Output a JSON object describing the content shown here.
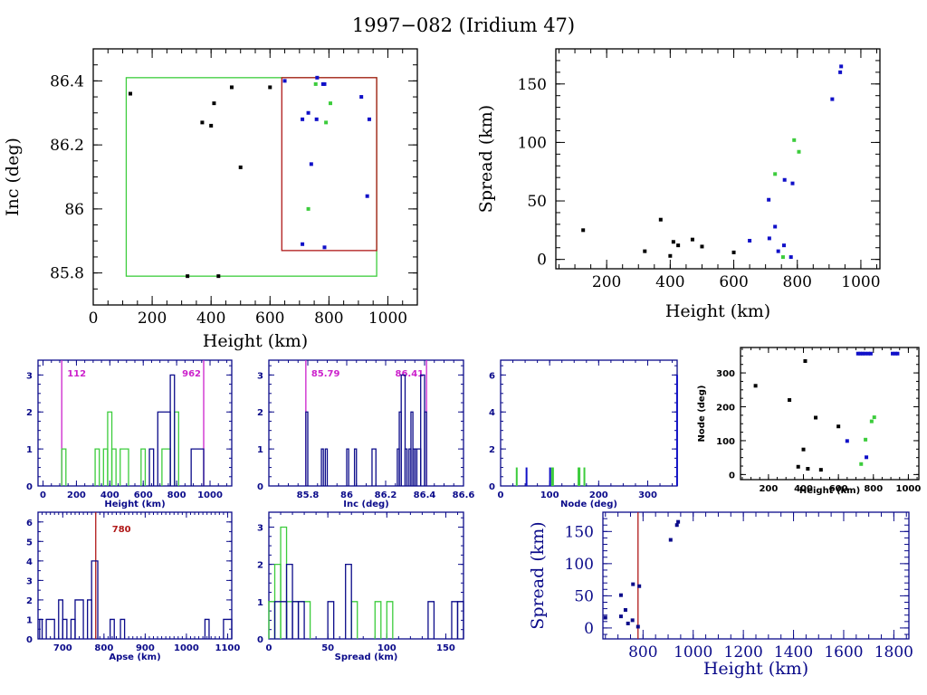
{
  "title": "1997−082 (Iridium 47)",
  "colors": {
    "black": "#000000",
    "navy": "#0b0b8a",
    "blue": "#1010c8",
    "green": "#3ccc3c",
    "red": "#b01818",
    "magenta": "#cc22cc"
  },
  "chart_data": [
    {
      "id": "inc-vs-height",
      "type": "scatter",
      "xlabel": "Height (km)",
      "ylabel": "Inc (deg)",
      "xlim": [
        0,
        1100
      ],
      "ylim": [
        85.7,
        86.5
      ],
      "xticks": [
        0,
        200,
        400,
        600,
        800,
        1000
      ],
      "yticks": [
        85.8,
        86,
        86.2,
        86.4
      ],
      "ytick_labels": [
        "85.8",
        "86",
        "86.2",
        "86.4"
      ],
      "boxes": [
        {
          "name": "green-box",
          "color": "green",
          "x": [
            112,
            962
          ],
          "y": [
            85.79,
            86.41
          ]
        },
        {
          "name": "red-box",
          "color": "red",
          "x": [
            640,
            962
          ],
          "y": [
            85.87,
            86.41
          ]
        }
      ],
      "series": [
        {
          "name": "black",
          "color": "black",
          "points": [
            [
              126,
              86.36
            ],
            [
              320,
              85.79
            ],
            [
              370,
              86.27
            ],
            [
              400,
              86.26
            ],
            [
              410,
              86.33
            ],
            [
              425,
              85.79
            ],
            [
              470,
              86.38
            ],
            [
              500,
              86.13
            ],
            [
              600,
              86.38
            ]
          ]
        },
        {
          "name": "blue",
          "color": "blue",
          "points": [
            [
              650,
              86.4
            ],
            [
              710,
              86.28
            ],
            [
              730,
              86.3
            ],
            [
              760,
              86.41
            ],
            [
              758,
              86.28
            ],
            [
              780,
              86.39
            ],
            [
              785,
              86.39
            ],
            [
              740,
              86.14
            ],
            [
              910,
              86.35
            ],
            [
              937,
              86.28
            ],
            [
              930,
              86.04
            ],
            [
              710,
              85.89
            ],
            [
              785,
              85.88
            ]
          ]
        },
        {
          "name": "green",
          "color": "green",
          "points": [
            [
              755,
              86.39
            ],
            [
              805,
              86.33
            ],
            [
              790,
              86.27
            ],
            [
              730,
              86.0
            ]
          ]
        }
      ]
    },
    {
      "id": "spread-vs-height",
      "type": "scatter",
      "xlabel": "Height (km)",
      "ylabel": "Spread (km)",
      "xlim": [
        40,
        1060
      ],
      "ylim": [
        -8,
        180
      ],
      "xticks": [
        200,
        400,
        600,
        800,
        1000
      ],
      "yticks": [
        0,
        50,
        100,
        150
      ],
      "series": [
        {
          "name": "black",
          "color": "black",
          "points": [
            [
              126,
              25
            ],
            [
              320,
              7
            ],
            [
              370,
              34
            ],
            [
              400,
              3
            ],
            [
              410,
              15
            ],
            [
              425,
              12
            ],
            [
              470,
              17
            ],
            [
              500,
              11
            ],
            [
              600,
              6
            ]
          ]
        },
        {
          "name": "blue",
          "color": "blue",
          "points": [
            [
              650,
              16
            ],
            [
              710,
              51
            ],
            [
              712,
              18
            ],
            [
              730,
              28
            ],
            [
              740,
              7
            ],
            [
              758,
              12
            ],
            [
              760,
              68
            ],
            [
              780,
              2
            ],
            [
              785,
              65
            ],
            [
              910,
              137
            ],
            [
              935,
              160
            ],
            [
              938,
              165
            ]
          ]
        },
        {
          "name": "green",
          "color": "green",
          "points": [
            [
              730,
              73
            ],
            [
              755,
              2
            ],
            [
              790,
              102
            ],
            [
              805,
              92
            ]
          ]
        }
      ]
    },
    {
      "id": "height-histogram",
      "type": "bar",
      "xlabel": "Height (km)",
      "ylabel": "",
      "xlim": [
        -30,
        1130
      ],
      "ylim": [
        0,
        3.4
      ],
      "xticks": [
        0,
        200,
        400,
        600,
        800,
        1000
      ],
      "yticks": [
        0,
        1,
        2,
        3
      ],
      "markers": [
        {
          "value": 112,
          "label": "112",
          "color": "magenta",
          "label_side": "right"
        },
        {
          "value": 962,
          "label": "962",
          "color": "magenta",
          "label_side": "left"
        }
      ],
      "series": [
        {
          "name": "green",
          "color": "green",
          "bins": [
            [
              112,
              137,
              1
            ],
            [
              312,
              337,
              1
            ],
            [
              362,
              387,
              1
            ],
            [
              387,
              412,
              2
            ],
            [
              412,
              437,
              1
            ],
            [
              462,
              512,
              1
            ],
            [
              587,
              612,
              1
            ],
            [
              712,
              762,
              1
            ],
            [
              787,
              812,
              2
            ]
          ]
        },
        {
          "name": "blue",
          "color": "navy",
          "bins": [
            [
              637,
              662,
              1
            ],
            [
              687,
              762,
              2
            ],
            [
              762,
              787,
              3
            ],
            [
              887,
              962,
              1
            ]
          ]
        }
      ]
    },
    {
      "id": "inc-histogram",
      "type": "bar",
      "xlabel": "Inc (deg)",
      "ylabel": "",
      "xlim": [
        85.6,
        86.6
      ],
      "ylim": [
        0,
        3.4
      ],
      "xticks": [
        85.8,
        86,
        86.2,
        86.4,
        86.6
      ],
      "xtick_labels": [
        "85.8",
        "86",
        "86.2",
        "86.4",
        "86.6"
      ],
      "yticks": [
        0,
        1,
        2,
        3
      ],
      "markers": [
        {
          "value": 85.79,
          "label": "85.79",
          "color": "magenta",
          "label_side": "right"
        },
        {
          "value": 86.41,
          "label": "86.41",
          "color": "magenta",
          "label_side": "left"
        }
      ],
      "series": [
        {
          "name": "blue",
          "color": "navy",
          "bins": [
            [
              85.79,
              85.8,
              2
            ],
            [
              85.87,
              85.88,
              1
            ],
            [
              85.89,
              85.9,
              1
            ],
            [
              86.0,
              86.01,
              1
            ],
            [
              86.04,
              86.05,
              1
            ],
            [
              86.13,
              86.15,
              1
            ],
            [
              86.26,
              86.27,
              1
            ],
            [
              86.27,
              86.28,
              2
            ],
            [
              86.28,
              86.3,
              3
            ],
            [
              86.3,
              86.31,
              1
            ],
            [
              86.32,
              86.33,
              1
            ],
            [
              86.33,
              86.34,
              2
            ],
            [
              86.34,
              86.35,
              1
            ],
            [
              86.35,
              86.36,
              1
            ],
            [
              86.36,
              86.38,
              1
            ],
            [
              86.38,
              86.4,
              3
            ],
            [
              86.4,
              86.41,
              2
            ]
          ]
        }
      ]
    },
    {
      "id": "node-histogram",
      "type": "bar",
      "xlabel": "Node (deg)",
      "ylabel": "",
      "xlim": [
        0,
        360
      ],
      "ylim": [
        0,
        6.8
      ],
      "xticks": [
        0,
        100,
        200,
        300
      ],
      "yticks": [
        0,
        2,
        4,
        6
      ],
      "series": [
        {
          "name": "green",
          "color": "green",
          "bins": [
            [
              31,
              32,
              1
            ],
            [
              103,
              104,
              1
            ],
            [
              105,
              106,
              1
            ],
            [
              157,
              158,
              1
            ],
            [
              159,
              160,
              1
            ],
            [
              169,
              170,
              1
            ]
          ]
        },
        {
          "name": "blue",
          "color": "blue",
          "bins": [
            [
              51,
              52,
              1
            ],
            [
              99,
              100,
              1
            ],
            [
              358,
              360,
              6
            ]
          ]
        }
      ]
    },
    {
      "id": "node-vs-height",
      "type": "scatter",
      "xlabel": "Height (km)",
      "ylabel": "Node (deg)",
      "xlim": [
        40,
        1060
      ],
      "ylim": [
        -15,
        375
      ],
      "xticks": [
        200,
        400,
        600,
        800,
        1000
      ],
      "yticks": [
        0,
        100,
        200,
        300
      ],
      "series": [
        {
          "name": "black",
          "color": "black",
          "points": [
            [
              126,
              262
            ],
            [
              320,
              220
            ],
            [
              370,
              23
            ],
            [
              400,
              74
            ],
            [
              410,
              335
            ],
            [
              425,
              17
            ],
            [
              470,
              168
            ],
            [
              500,
              14
            ],
            [
              600,
              142
            ]
          ]
        },
        {
          "name": "blue",
          "color": "blue",
          "points": [
            [
              650,
              99
            ],
            [
              760,
              51
            ],
            [
              712,
              357
            ],
            [
              725,
              357
            ],
            [
              738,
              357
            ],
            [
              752,
              357
            ],
            [
              770,
              357
            ],
            [
              785,
              357
            ],
            [
              910,
              357
            ],
            [
              925,
              357
            ],
            [
              938,
              357
            ]
          ]
        },
        {
          "name": "green",
          "color": "green",
          "points": [
            [
              730,
              31
            ],
            [
              755,
              103
            ],
            [
              790,
              157
            ],
            [
              805,
              169
            ]
          ]
        }
      ]
    },
    {
      "id": "apse-histogram",
      "type": "bar",
      "xlabel": "Apse (km)",
      "ylabel": "",
      "xlim": [
        640,
        1110
      ],
      "ylim": [
        0,
        6.5
      ],
      "xticks": [
        700,
        800,
        900,
        1000,
        1100
      ],
      "yticks": [
        0,
        1,
        2,
        3,
        4,
        5,
        6
      ],
      "markers": [
        {
          "value": 780,
          "label": "780",
          "color": "red",
          "label_side": "right"
        }
      ],
      "series": [
        {
          "name": "blue",
          "color": "navy",
          "bins": [
            [
              644,
              650,
              1
            ],
            [
              660,
              680,
              1
            ],
            [
              690,
              700,
              2
            ],
            [
              700,
              710,
              1
            ],
            [
              720,
              730,
              1
            ],
            [
              730,
              750,
              2
            ],
            [
              760,
              770,
              2
            ],
            [
              770,
              785,
              4
            ],
            [
              815,
              825,
              1
            ],
            [
              840,
              850,
              1
            ],
            [
              1045,
              1055,
              1
            ],
            [
              1090,
              1110,
              1
            ]
          ]
        }
      ]
    },
    {
      "id": "spread-histogram",
      "type": "bar",
      "xlabel": "Spread (km)",
      "ylabel": "",
      "xlim": [
        0,
        165
      ],
      "ylim": [
        0,
        3.4
      ],
      "xticks": [
        0,
        50,
        100,
        150
      ],
      "yticks": [
        0,
        1,
        2,
        3
      ],
      "series": [
        {
          "name": "green",
          "color": "green",
          "bins": [
            [
              0,
              5,
              1
            ],
            [
              5,
              10,
              2
            ],
            [
              10,
              15,
              3
            ],
            [
              15,
              35,
              1
            ],
            [
              70,
              75,
              1
            ],
            [
              90,
              95,
              1
            ],
            [
              100,
              105,
              1
            ]
          ]
        },
        {
          "name": "blue",
          "color": "navy",
          "bins": [
            [
              5,
              15,
              1
            ],
            [
              15,
              20,
              2
            ],
            [
              20,
              25,
              1
            ],
            [
              25,
              30,
              1
            ],
            [
              50,
              55,
              1
            ],
            [
              65,
              70,
              2
            ],
            [
              135,
              140,
              1
            ],
            [
              155,
              160,
              1
            ],
            [
              160,
              165,
              1
            ]
          ]
        }
      ]
    },
    {
      "id": "spread-vs-height-wide",
      "type": "scatter",
      "xlabel": "Height (km)",
      "ylabel": "Spread (km)",
      "xlim": [
        640,
        1860
      ],
      "ylim": [
        -17,
        180
      ],
      "xticks": [
        800,
        1000,
        1200,
        1400,
        1600,
        1800
      ],
      "yticks": [
        0,
        50,
        100,
        150
      ],
      "markers": [
        {
          "value": 780,
          "label": "",
          "color": "red"
        }
      ],
      "series": [
        {
          "name": "blue",
          "color": "navy",
          "points": [
            [
              650,
              16
            ],
            [
              712,
              51
            ],
            [
              712,
              18
            ],
            [
              730,
              28
            ],
            [
              740,
              7
            ],
            [
              758,
              12
            ],
            [
              760,
              68
            ],
            [
              780,
              2
            ],
            [
              785,
              65
            ],
            [
              910,
              137
            ],
            [
              935,
              160
            ],
            [
              940,
              165
            ]
          ]
        }
      ]
    }
  ]
}
